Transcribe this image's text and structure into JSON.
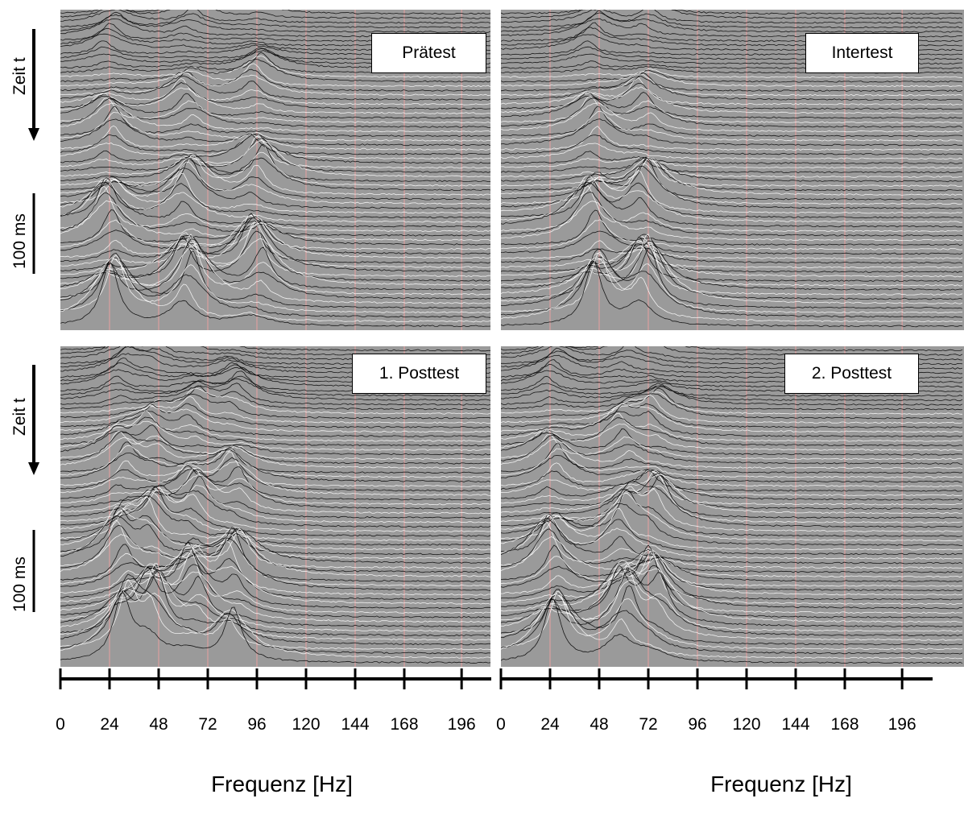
{
  "chart_data": [
    {
      "type": "area",
      "panel_title": "Prätest",
      "ylabel_time": "Zeit t",
      "ylabel_scale": "100 ms",
      "xlabel": "Frequenz [Hz]",
      "x_ticks": [
        "0",
        "24",
        "48",
        "72",
        "96",
        "120",
        "144",
        "168",
        "196"
      ],
      "xlim": [
        0,
        210
      ],
      "peaks_hz": [
        24,
        62,
        96
      ]
    },
    {
      "type": "area",
      "panel_title": "Intertest",
      "ylabel_time": "",
      "ylabel_scale": "",
      "xlabel": "Frequenz [Hz]",
      "x_ticks": [
        "0",
        "24",
        "48",
        "72",
        "96",
        "120",
        "144",
        "168",
        "196"
      ],
      "xlim": [
        0,
        210
      ],
      "peaks_hz": [
        45,
        70
      ]
    },
    {
      "type": "area",
      "panel_title": "1. Posttest",
      "ylabel_time": "Zeit t",
      "ylabel_scale": "100 ms",
      "xlabel": "Frequenz [Hz]",
      "x_ticks": [
        "0",
        "24",
        "48",
        "72",
        "96",
        "120",
        "144",
        "168",
        "196"
      ],
      "xlim": [
        0,
        210
      ],
      "peaks_hz": [
        30,
        45,
        65,
        85
      ]
    },
    {
      "type": "area",
      "panel_title": "2. Posttest",
      "ylabel_time": "",
      "ylabel_scale": "",
      "xlabel": "Frequenz [Hz]",
      "x_ticks": [
        "0",
        "24",
        "48",
        "72",
        "96",
        "120",
        "144",
        "168",
        "196"
      ],
      "xlim": [
        0,
        210
      ],
      "peaks_hz": [
        25,
        60,
        75
      ]
    }
  ],
  "colors": {
    "background": "#9a9a9a",
    "trace": "#000000",
    "gridline": "#e8a0a0"
  }
}
